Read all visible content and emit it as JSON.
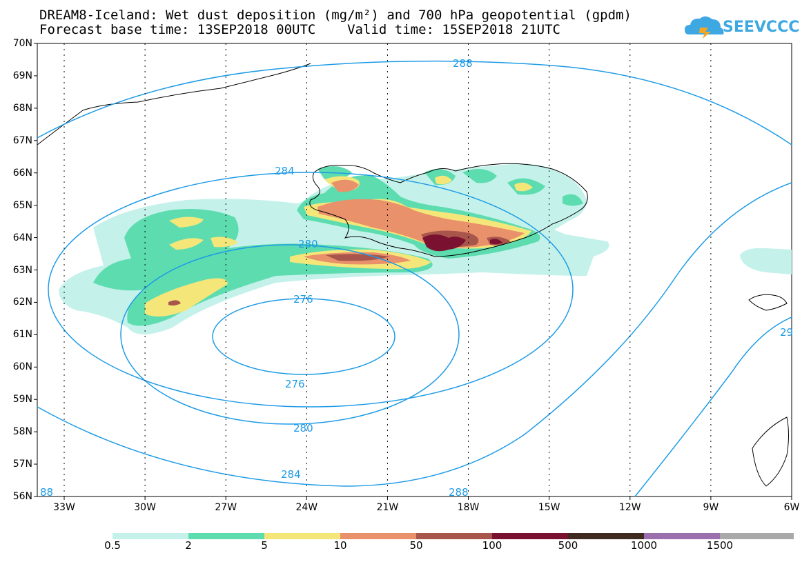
{
  "title": {
    "line1": "DREAM8-Iceland: Wet dust deposition (mg/m²) and 700 hPa geopotential (gpdm)",
    "line2": "Forecast base time: 13SEP2018 00UTC    Valid time: 15SEP2018 21UTC"
  },
  "logo": {
    "text": "SEEVCCC",
    "icon": "cloud-icon",
    "color": "#3ea8e2"
  },
  "map": {
    "lat_labels": [
      "70N",
      "69N",
      "68N",
      "67N",
      "66N",
      "65N",
      "64N",
      "63N",
      "62N",
      "61N",
      "60N",
      "59N",
      "58N",
      "57N",
      "56N"
    ],
    "lon_labels": [
      "33W",
      "30W",
      "27W",
      "24W",
      "21W",
      "18W",
      "15W",
      "12W",
      "9W",
      "6W"
    ],
    "contour_labels": [
      "288",
      "284",
      "280",
      "276",
      "276",
      "280",
      "284",
      "288",
      "88",
      "29"
    ],
    "contour_color": "#1e9be6"
  },
  "legend": {
    "labels": [
      "0.5",
      "2",
      "5",
      "10",
      "50",
      "100",
      "500",
      "1000",
      "1500"
    ],
    "colors": [
      "#c4f2ea",
      "#5ddcb0",
      "#f5e67a",
      "#e9916a",
      "#a8564c",
      "#7a1131",
      "#3e2a1e",
      "#9b6fae",
      "#a9a9a9"
    ]
  }
}
